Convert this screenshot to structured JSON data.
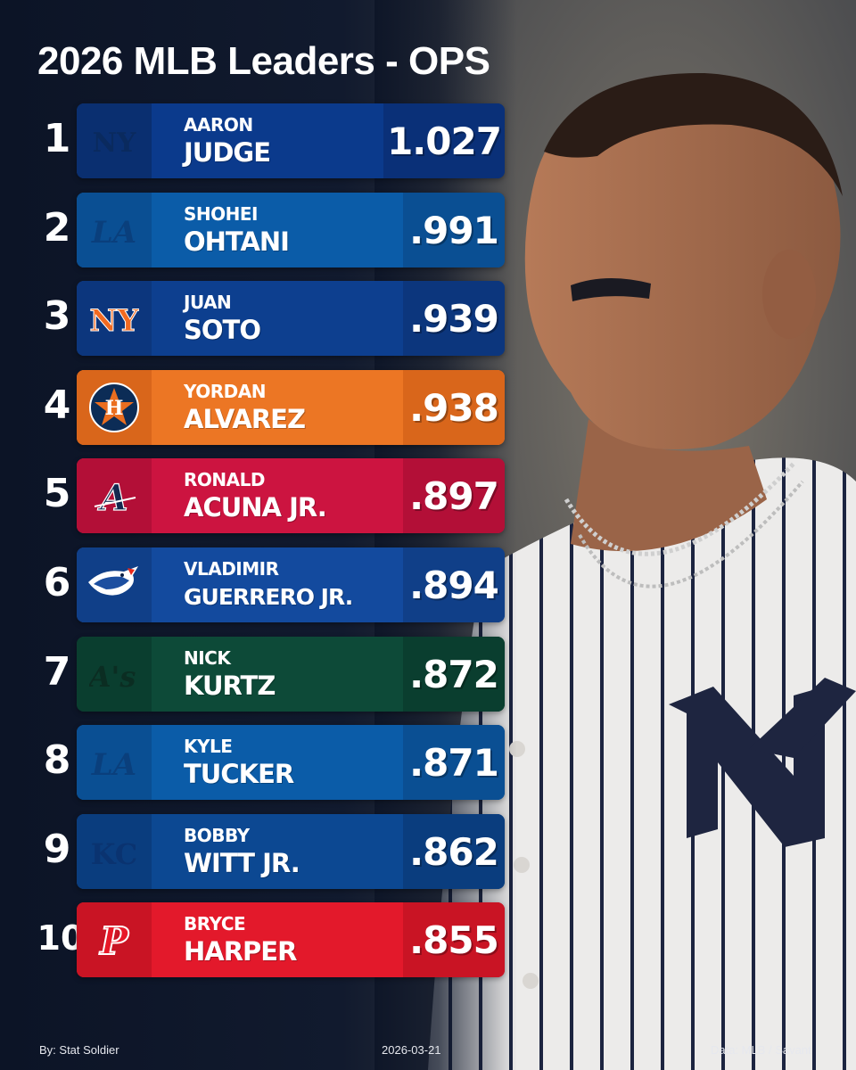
{
  "title": "2026 MLB Leaders - OPS",
  "rows": [
    {
      "rank": "1",
      "first": "AARON",
      "last": "JUDGE",
      "value": "1.027",
      "team_logo": "yankees-logo",
      "bg": "#0b3a8c",
      "logo_bg": "#0a2f70",
      "value_bg": "#0a3078"
    },
    {
      "rank": "2",
      "first": "SHOHEI",
      "last": "OHTANI",
      "value": ".991",
      "team_logo": "dodgers-logo",
      "bg": "#0b5ca8",
      "logo_bg": "#0a4f93",
      "value_bg": "#0a4f93"
    },
    {
      "rank": "3",
      "first": "JUAN",
      "last": "SOTO",
      "value": ".939",
      "team_logo": "mets-logo",
      "bg": "#0d3f8f",
      "logo_bg": "#0c367d",
      "value_bg": "#0c367d"
    },
    {
      "rank": "4",
      "first": "YORDAN",
      "last": "ALVAREZ",
      "value": ".938",
      "team_logo": "astros-logo",
      "bg": "#ec7624",
      "logo_bg": "#d9661b",
      "value_bg": "#d9661b"
    },
    {
      "rank": "5",
      "first": "RONALD",
      "last": "ACUNA JR.",
      "value": ".897",
      "team_logo": "braves-logo",
      "bg": "#cc1440",
      "logo_bg": "#b30f37",
      "value_bg": "#b30f37"
    },
    {
      "rank": "6",
      "first": "VLADIMIR",
      "last": "GUERRERO JR.",
      "value": ".894",
      "team_logo": "blue-jays-logo",
      "bg": "#134a9e",
      "logo_bg": "#103f88",
      "value_bg": "#103f88"
    },
    {
      "rank": "7",
      "first": "NICK",
      "last": "KURTZ",
      "value": ".872",
      "team_logo": "athletics-logo",
      "bg": "#0d4a38",
      "logo_bg": "#0a3e2f",
      "value_bg": "#0a3e2f"
    },
    {
      "rank": "8",
      "first": "KYLE",
      "last": "TUCKER",
      "value": ".871",
      "team_logo": "dodgers-logo",
      "bg": "#0b5ca8",
      "logo_bg": "#0a4f93",
      "value_bg": "#0a4f93"
    },
    {
      "rank": "9",
      "first": "BOBBY",
      "last": "WITT JR.",
      "value": ".862",
      "team_logo": "royals-logo",
      "bg": "#0c4892",
      "logo_bg": "#0a3d7e",
      "value_bg": "#0a3d7e"
    },
    {
      "rank": "10",
      "first": "BRYCE",
      "last": "HARPER",
      "value": ".855",
      "team_logo": "phillies-logo",
      "bg": "#e3192b",
      "logo_bg": "#c91424",
      "value_bg": "#c91424"
    }
  ],
  "footer": {
    "credit": "By: Stat Soldier",
    "date": "2026-03-21",
    "source": "Data: MLB / Savant"
  }
}
